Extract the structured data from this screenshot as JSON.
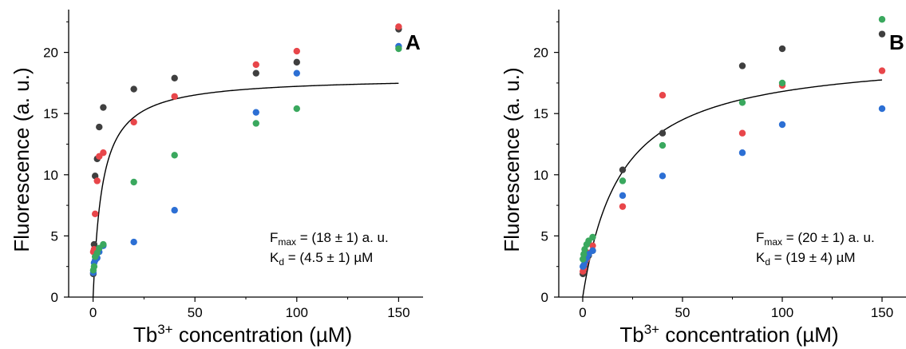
{
  "colors": {
    "black": "#3f3f3f",
    "red": "#e8464a",
    "blue": "#2c6fd4",
    "green": "#3aa85e",
    "fit": "#000000"
  },
  "chart_data": [
    {
      "type": "scatter",
      "panel_label": "A",
      "xlabel_prefix": "Tb",
      "xlabel_sup": "3+",
      "xlabel_suffix": " concentration (µM)",
      "ylabel": "Fluorescence (a. u.)",
      "xlim": [
        -12,
        162
      ],
      "ylim": [
        0,
        23.5
      ],
      "xticks": [
        0,
        50,
        100,
        150
      ],
      "yticks": [
        0,
        5,
        10,
        15,
        20
      ],
      "grid": false,
      "annotation": {
        "fmax_main": "F",
        "fmax_sub": "max",
        "fmax_rest": " = (18 ± 1) a. u.",
        "kd_main": "K",
        "kd_sub": "d",
        "kd_rest": " = (4.5 ± 1) µM"
      },
      "fit": {
        "model": "hyperbolic",
        "fmax": 18,
        "kd": 4.5,
        "x_range": [
          0,
          150
        ]
      },
      "series": [
        {
          "color": "black",
          "x": [
            0.1,
            0.5,
            1,
            2,
            3,
            5,
            20,
            40,
            80,
            100,
            150
          ],
          "y": [
            1.9,
            4.3,
            9.9,
            11.3,
            13.9,
            15.5,
            17.0,
            17.9,
            18.3,
            19.2,
            21.9
          ]
        },
        {
          "color": "red",
          "x": [
            0.1,
            0.5,
            1,
            2,
            3,
            5,
            20,
            40,
            80,
            100,
            150
          ],
          "y": [
            3.7,
            3.9,
            6.8,
            9.5,
            11.5,
            11.8,
            14.3,
            16.4,
            19.0,
            20.1,
            22.1
          ]
        },
        {
          "color": "blue",
          "x": [
            0.1,
            0.5,
            1,
            2,
            3,
            5,
            20,
            40,
            80,
            100,
            150
          ],
          "y": [
            2.0,
            2.8,
            3.0,
            3.2,
            3.7,
            4.2,
            4.5,
            7.1,
            15.1,
            18.3,
            20.5
          ]
        },
        {
          "color": "green",
          "x": [
            0.1,
            0.5,
            1,
            2,
            3,
            5,
            20,
            40,
            80,
            100,
            150
          ],
          "y": [
            2.2,
            2.5,
            3.3,
            3.6,
            4.0,
            4.3,
            9.4,
            11.6,
            14.2,
            15.4,
            20.3
          ]
        }
      ]
    },
    {
      "type": "scatter",
      "panel_label": "B",
      "xlabel_prefix": "Tb",
      "xlabel_sup": "3+",
      "xlabel_suffix": " concentration (µM)",
      "ylabel": "Fluorescence (a. u.)",
      "xlim": [
        -12,
        162
      ],
      "ylim": [
        0,
        23.5
      ],
      "xticks": [
        0,
        50,
        100,
        150
      ],
      "yticks": [
        0,
        5,
        10,
        15,
        20
      ],
      "grid": false,
      "annotation": {
        "fmax_main": "F",
        "fmax_sub": "max",
        "fmax_rest": " = (20 ± 1) a. u.",
        "kd_main": "K",
        "kd_sub": "d",
        "kd_rest": " = (19 ± 4) µM"
      },
      "fit": {
        "model": "hyperbolic",
        "fmax": 20,
        "kd": 19,
        "x_range": [
          0,
          150
        ]
      },
      "series": [
        {
          "color": "black",
          "x": [
            0.1,
            0.5,
            1,
            2,
            3,
            5,
            20,
            40,
            80,
            100,
            150
          ],
          "y": [
            1.9,
            2.2,
            2.6,
            3.0,
            3.4,
            3.8,
            10.4,
            13.4,
            18.9,
            20.3,
            21.5
          ]
        },
        {
          "color": "red",
          "x": [
            0.1,
            0.5,
            1,
            2,
            3,
            5,
            20,
            40,
            80,
            100,
            150
          ],
          "y": [
            2.1,
            2.3,
            2.7,
            3.1,
            3.6,
            4.2,
            7.4,
            16.5,
            13.4,
            17.3,
            18.5
          ]
        },
        {
          "color": "blue",
          "x": [
            0.1,
            0.5,
            1,
            2,
            3,
            5,
            20,
            40,
            80,
            100,
            150
          ],
          "y": [
            2.5,
            2.6,
            2.9,
            3.2,
            3.5,
            3.8,
            8.3,
            9.9,
            11.8,
            14.1,
            15.4
          ]
        },
        {
          "color": "green",
          "x": [
            0.1,
            0.5,
            1,
            2,
            3,
            5,
            20,
            40,
            80,
            100,
            150
          ],
          "y": [
            3.1,
            3.5,
            3.9,
            4.3,
            4.6,
            4.9,
            9.5,
            12.4,
            15.9,
            17.5,
            22.7
          ]
        }
      ]
    }
  ]
}
